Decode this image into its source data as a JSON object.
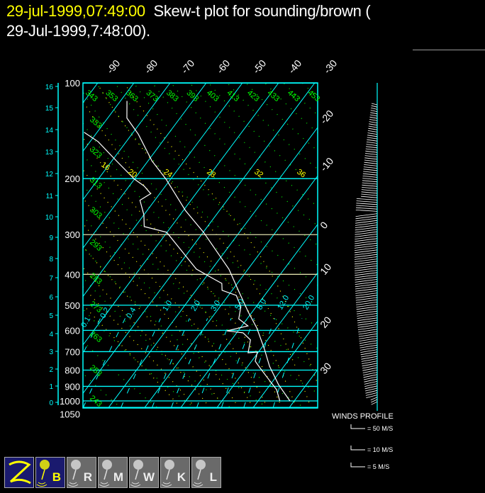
{
  "header": {
    "date": "29-jul-1999,07:49:00",
    "title_line1": "Skew-t plot for sounding/brown (",
    "title_line2": "29-Jul-1999,7:48:00)."
  },
  "colors": {
    "isotherm": "#00ffff",
    "dry_adiabat": "#00ff00",
    "moist_adiabat": "#ffff00",
    "profile": "#ffffff",
    "button_active": "#1a1a6e",
    "button_inactive": "#6a6a6a"
  },
  "chart_data": {
    "type": "line",
    "subtype": "skew-t log-p",
    "y_scale": "log",
    "pressure_ticks": [
      100,
      200,
      300,
      400,
      500,
      600,
      700,
      800,
      900,
      1000,
      1050
    ],
    "height_ticks_km": [
      0,
      1,
      2,
      3,
      4,
      5,
      6,
      7,
      8,
      9,
      10,
      11,
      12,
      13,
      14,
      15,
      16
    ],
    "isotherm_labels": [
      -90,
      -80,
      -70,
      -60,
      -50,
      -40,
      -30,
      -20,
      -10,
      0,
      10,
      20,
      30
    ],
    "dry_adiabat_labels": [
      243,
      253,
      263,
      273,
      283,
      293,
      303,
      313,
      323,
      333,
      343,
      353,
      363,
      373,
      383,
      393,
      403,
      413,
      423,
      433,
      443,
      453
    ],
    "moist_adiabat_labels": [
      16,
      20,
      24,
      28,
      32,
      36
    ],
    "mixing_ratio_labels": [
      "0.1",
      "0.2",
      "0.4",
      "1.0",
      "2.0",
      "3.0",
      "5.0",
      "8.0",
      "12.0",
      "20.0"
    ],
    "series": [
      {
        "kind": "temperature",
        "p": [
          1000,
          889,
          778,
          688,
          590,
          524,
          456,
          385,
          295,
          252,
          201,
          176,
          145,
          129,
          114
        ],
        "t": [
          28.8,
          22.3,
          16.0,
          11.1,
          4.6,
          -1.2,
          -7.6,
          -15.3,
          -29.9,
          -39.4,
          -51.2,
          -58.9,
          -68.2,
          -74.7,
          -78.2
        ]
      },
      {
        "kind": "dewpoint",
        "p": [
          1000,
          922,
          844,
          790,
          750,
          702,
          706,
          643,
          611,
          602,
          581,
          552,
          506,
          466,
          449,
          427,
          412,
          385,
          295,
          283,
          260,
          234,
          223,
          211,
          201,
          176,
          153,
          143
        ],
        "t": [
          26.0,
          22.8,
          17.7,
          13.9,
          11.0,
          9.7,
          7.3,
          5.3,
          1.8,
          -3.1,
          1.7,
          -2.3,
          -4.2,
          -7.8,
          -12.8,
          -14.3,
          -17.8,
          -24.3,
          -40.1,
          -47.5,
          -50.0,
          -54.1,
          -52.5,
          -55.9,
          -59.9,
          -68.7,
          -77.8,
          -83.6
        ]
      }
    ]
  },
  "winds": {
    "title": "WINDS PROFILE",
    "legend": [
      "= 50 M/S",
      "= 10 M/S",
      "= 5 M/S"
    ]
  },
  "buttons": [
    {
      "label": "Z",
      "icon": "z-logo-icon",
      "active": true
    },
    {
      "label": "B",
      "icon": "balloon-icon",
      "active": true
    },
    {
      "label": "R",
      "icon": "balloon-icon",
      "active": false
    },
    {
      "label": "M",
      "icon": "balloon-icon",
      "active": false
    },
    {
      "label": "W",
      "icon": "balloon-icon",
      "active": false
    },
    {
      "label": "K",
      "icon": "balloon-icon",
      "active": false
    },
    {
      "label": "L",
      "icon": "balloon-icon",
      "active": false
    }
  ]
}
